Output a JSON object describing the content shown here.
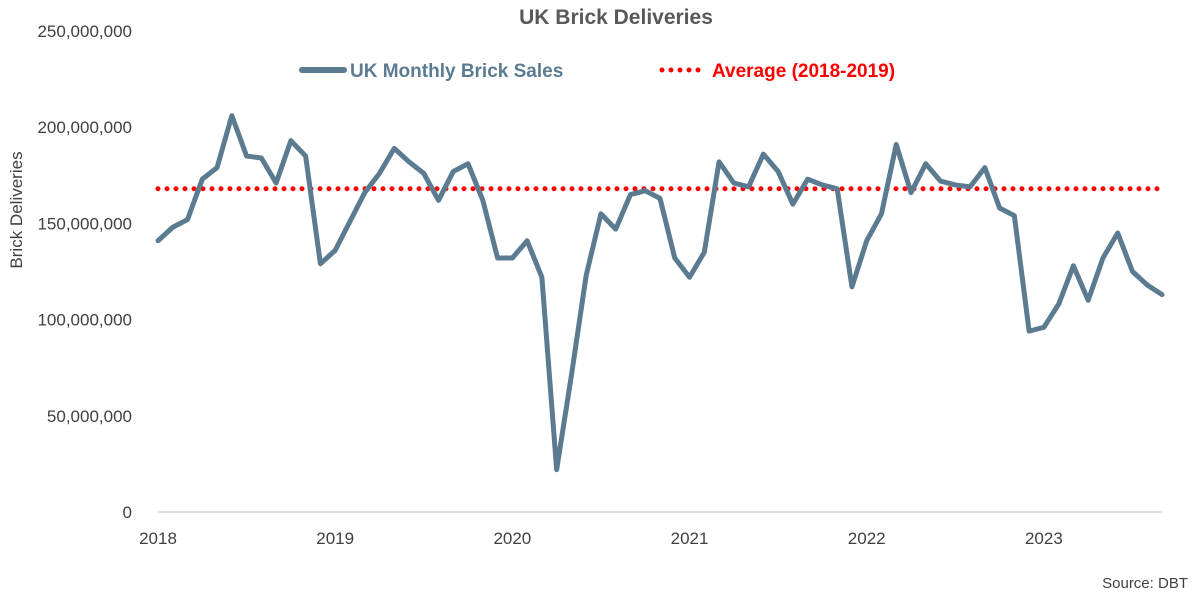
{
  "chart_data": {
    "type": "line",
    "title": "UK Brick Deliveries",
    "ylabel": "Brick Deliveries",
    "xlabel": "",
    "source": "Source: DBT",
    "ylim": [
      0,
      250000000
    ],
    "yticks": [
      {
        "value": 0,
        "label": "0"
      },
      {
        "value": 50000000,
        "label": "50,000,000"
      },
      {
        "value": 100000000,
        "label": "100,000,000"
      },
      {
        "value": 150000000,
        "label": "150,000,000"
      },
      {
        "value": 200000000,
        "label": "200,000,000"
      },
      {
        "value": 250000000,
        "label": "250,000,000"
      }
    ],
    "xlim": [
      "2018-01",
      "2023-09"
    ],
    "xticks": [
      {
        "value": "2018-01",
        "label": "2018"
      },
      {
        "value": "2019-01",
        "label": "2019"
      },
      {
        "value": "2020-01",
        "label": "2020"
      },
      {
        "value": "2021-01",
        "label": "2021"
      },
      {
        "value": "2022-01",
        "label": "2022"
      },
      {
        "value": "2023-01",
        "label": "2023"
      }
    ],
    "grid": false,
    "legend": "top-center",
    "series": [
      {
        "name": "UK Monthly Brick Sales",
        "color": "#5b7b90",
        "style": "solid",
        "x": [
          "2018-01",
          "2018-02",
          "2018-03",
          "2018-04",
          "2018-05",
          "2018-06",
          "2018-07",
          "2018-08",
          "2018-09",
          "2018-10",
          "2018-11",
          "2018-12",
          "2019-01",
          "2019-02",
          "2019-03",
          "2019-04",
          "2019-05",
          "2019-06",
          "2019-07",
          "2019-08",
          "2019-09",
          "2019-10",
          "2019-11",
          "2019-12",
          "2020-01",
          "2020-02",
          "2020-03",
          "2020-04",
          "2020-05",
          "2020-06",
          "2020-07",
          "2020-08",
          "2020-09",
          "2020-10",
          "2020-11",
          "2020-12",
          "2021-01",
          "2021-02",
          "2021-03",
          "2021-04",
          "2021-05",
          "2021-06",
          "2021-07",
          "2021-08",
          "2021-09",
          "2021-10",
          "2021-11",
          "2021-12",
          "2022-01",
          "2022-02",
          "2022-03",
          "2022-04",
          "2022-05",
          "2022-06",
          "2022-07",
          "2022-08",
          "2022-09",
          "2022-10",
          "2022-11",
          "2022-12",
          "2023-01",
          "2023-02",
          "2023-03",
          "2023-04",
          "2023-05",
          "2023-06",
          "2023-07",
          "2023-08",
          "2023-09"
        ],
        "values": [
          141000000,
          148000000,
          152000000,
          173000000,
          179000000,
          206000000,
          185000000,
          184000000,
          171000000,
          193000000,
          185000000,
          129000000,
          136000000,
          151000000,
          166000000,
          176000000,
          189000000,
          182000000,
          176000000,
          162000000,
          177000000,
          181000000,
          162000000,
          132000000,
          132000000,
          141000000,
          122000000,
          22000000,
          71000000,
          123000000,
          155000000,
          147000000,
          165000000,
          167000000,
          163000000,
          132000000,
          122000000,
          135000000,
          182000000,
          171000000,
          169000000,
          186000000,
          177000000,
          160000000,
          173000000,
          170000000,
          168000000,
          117000000,
          141000000,
          155000000,
          191000000,
          166000000,
          181000000,
          172000000,
          170000000,
          169000000,
          179000000,
          158000000,
          154000000,
          94000000,
          96000000,
          108000000,
          128000000,
          110000000,
          132000000,
          145000000,
          125000000,
          118000000,
          113000000
        ]
      },
      {
        "name": "Average (2018-2019)",
        "color": "#ff0000",
        "style": "dotted",
        "x": [
          "2018-01",
          "2023-09"
        ],
        "values": [
          168000000,
          168000000
        ]
      }
    ]
  }
}
